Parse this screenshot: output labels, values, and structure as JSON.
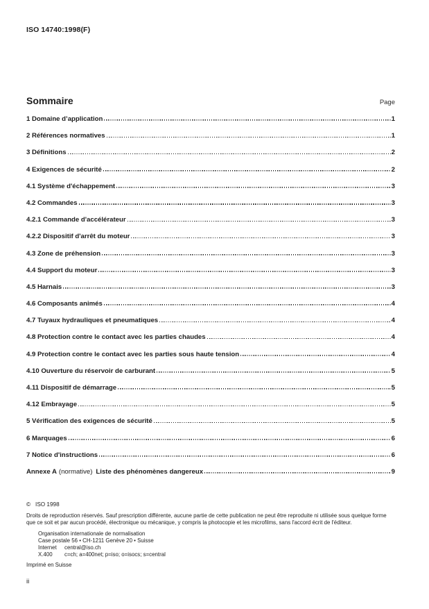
{
  "page": {
    "header": "ISO 14740:1998(F)",
    "folio": "ii"
  },
  "toc": {
    "title": "Sommaire",
    "page_label": "Page",
    "entries": [
      {
        "label": "1 Domaine d’application",
        "page": "1"
      },
      {
        "label": "2 Références normatives",
        "page": "1"
      },
      {
        "label": "3 Définitions",
        "page": "2"
      },
      {
        "label": "4 Exigences de sécurité",
        "page": "2"
      },
      {
        "label": "4.1 Système d'échappement",
        "page": "3"
      },
      {
        "label": "4.2 Commandes",
        "page": "3"
      },
      {
        "label": "4.2.1 Commande d'accélérateur",
        "page": "3"
      },
      {
        "label": "4.2.2 Dispositif d'arrêt du moteur",
        "page": "3"
      },
      {
        "label": "4.3 Zone de préhension",
        "page": "3"
      },
      {
        "label": "4.4 Support du moteur",
        "page": "3"
      },
      {
        "label": "4.5 Harnais",
        "page": "3"
      },
      {
        "label": "4.6 Composants animés",
        "page": "4"
      },
      {
        "label": "4.7 Tuyaux hydrauliques et pneumatiques",
        "page": "4"
      },
      {
        "label": "4.8 Protection contre le contact avec les parties chaudes",
        "page": "4"
      },
      {
        "label": "4.9 Protection contre le contact avec les parties sous haute tension",
        "page": "4"
      },
      {
        "label": "4.10 Ouverture du réservoir de carburant",
        "page": "5"
      },
      {
        "label": "4.11 Dispositif de démarrage",
        "page": "5"
      },
      {
        "label": "4.12 Embrayage",
        "page": "5"
      },
      {
        "label": "5 Vérification des exigences de sécurité",
        "page": "5"
      },
      {
        "label": "6 Marquages",
        "page": "6"
      },
      {
        "label": "7 Notice d'instructions",
        "page": "6"
      }
    ],
    "annexe": {
      "bold_prefix": "Annexe A",
      "normal": "(normative)",
      "bold_title": "Liste des phénomènes dangereux",
      "page": "9"
    }
  },
  "footer": {
    "copyright_symbol": "©",
    "copyright_text": "ISO 1998",
    "rights": "Droits de reproduction réservés. Sauf prescription différente, aucune partie de cette publication ne peut être reproduite ni utilisée sous quelque forme que ce soit et par aucun procédé, électronique ou mécanique, y compris la photocopie et les microfilms, sans l'accord écrit de l'éditeur.",
    "address": {
      "org": "Organisation internationale de normalisation",
      "postal": "Case postale 56 • CH-1211 Genève 20 • Suisse",
      "internet_label": "Internet",
      "internet_value": "central@iso.ch",
      "x400_label": "X.400",
      "x400_value": "c=ch; a=400net; p=iso; o=isocs; s=central"
    },
    "printed": "Imprimé en Suisse"
  }
}
